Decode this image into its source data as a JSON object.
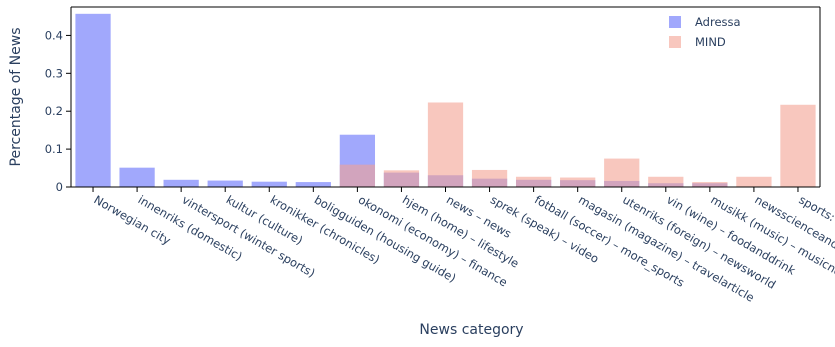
{
  "chart_data": {
    "type": "bar",
    "barmode": "overlay",
    "title": "",
    "xlabel": "News category",
    "ylabel": "Percentage of News",
    "ylim": [
      0,
      0.475
    ],
    "yticks": [
      0,
      0.1,
      0.2,
      0.3,
      0.4
    ],
    "ytick_labels": [
      "0",
      "0.1",
      "0.2",
      "0.3",
      "0.4"
    ],
    "grid": false,
    "legend_position": "top-right",
    "categories": [
      "Norwegian city",
      "innenriks (domestic)",
      "vintersport (winter sports)",
      "kultur (culture)",
      "kronikker (chronicles)",
      "boligguiden (housing guide)",
      "okonomi (economy) – finance",
      "hjem (home) – lifestyle",
      "news – news",
      "sprek (speak) – video",
      "fotball (soccer) – more_sports",
      "magasin (magazine) – travelarticle",
      "utenriks (foreign) – newsworld",
      "vin (wine) – foodanddrink",
      "musikk (music) – musicnews",
      "newsscienceandtechnology",
      "sports: nba/mlb/nfl"
    ],
    "series": [
      {
        "name": "Adressa",
        "color": "#636efa",
        "values": [
          0.457,
          0.051,
          0.019,
          0.017,
          0.014,
          0.013,
          0.138,
          0.038,
          0.031,
          0.022,
          0.019,
          0.018,
          0.016,
          0.01,
          0.01,
          0,
          0
        ]
      },
      {
        "name": "MIND",
        "color": "#f4a193",
        "values": [
          0,
          0,
          0,
          0,
          0,
          0,
          0.059,
          0.044,
          0.223,
          0.045,
          0.027,
          0.025,
          0.075,
          0.027,
          0.013,
          0.027,
          0.217
        ]
      }
    ]
  }
}
